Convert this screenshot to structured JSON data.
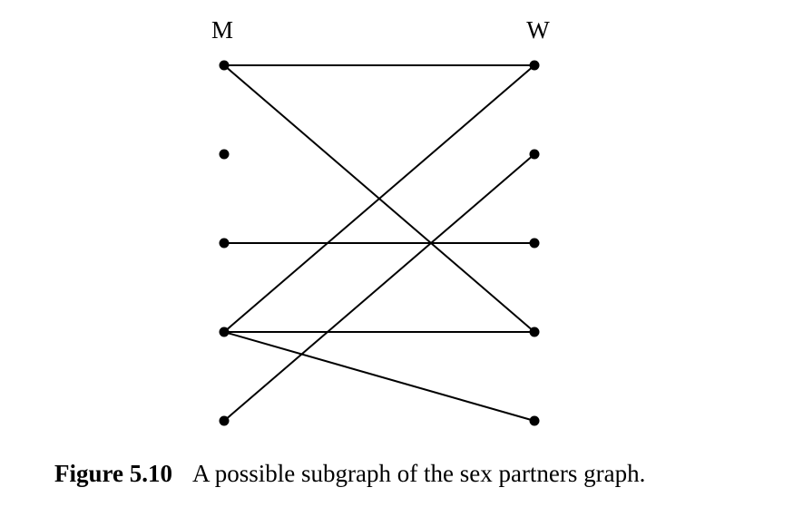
{
  "graph": {
    "left_label": "M",
    "right_label": "W",
    "left_nodes": [
      "m1",
      "m2",
      "m3",
      "m4",
      "m5"
    ],
    "right_nodes": [
      "w1",
      "w2",
      "w3",
      "w4",
      "w5"
    ],
    "edges": [
      [
        "m1",
        "w1"
      ],
      [
        "m1",
        "w4"
      ],
      [
        "m3",
        "w3"
      ],
      [
        "m4",
        "w1"
      ],
      [
        "m4",
        "w4"
      ],
      [
        "m4",
        "w5"
      ],
      [
        "m5",
        "w2"
      ]
    ],
    "color": "#000000"
  },
  "caption": {
    "number": "Figure 5.10",
    "text": "A possible subgraph of the sex partners graph."
  }
}
